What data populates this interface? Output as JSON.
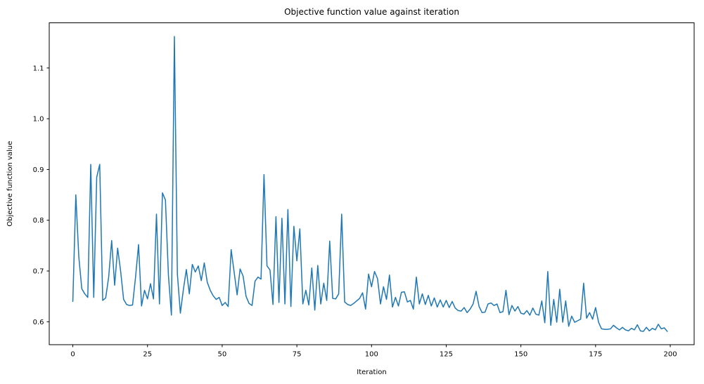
{
  "chart_data": {
    "type": "line",
    "title": "Objective function value against iteration",
    "xlabel": "Iteration",
    "ylabel": "Objective function value",
    "x_start": 0,
    "x_step": 1,
    "values": [
      0.64,
      0.85,
      0.728,
      0.665,
      0.655,
      0.648,
      0.91,
      0.648,
      0.885,
      0.91,
      0.642,
      0.647,
      0.688,
      0.76,
      0.672,
      0.745,
      0.7,
      0.644,
      0.634,
      0.632,
      0.633,
      0.688,
      0.752,
      0.631,
      0.662,
      0.645,
      0.675,
      0.645,
      0.812,
      0.635,
      0.854,
      0.84,
      0.692,
      0.613,
      1.162,
      0.694,
      0.617,
      0.663,
      0.703,
      0.655,
      0.713,
      0.698,
      0.71,
      0.681,
      0.716,
      0.678,
      0.662,
      0.651,
      0.644,
      0.648,
      0.632,
      0.638,
      0.63,
      0.742,
      0.698,
      0.653,
      0.704,
      0.69,
      0.65,
      0.636,
      0.632,
      0.68,
      0.688,
      0.684,
      0.89,
      0.71,
      0.702,
      0.634,
      0.807,
      0.638,
      0.804,
      0.635,
      0.821,
      0.63,
      0.788,
      0.72,
      0.783,
      0.635,
      0.662,
      0.633,
      0.706,
      0.623,
      0.711,
      0.635,
      0.676,
      0.642,
      0.759,
      0.646,
      0.645,
      0.655,
      0.812,
      0.639,
      0.634,
      0.632,
      0.636,
      0.641,
      0.646,
      0.657,
      0.625,
      0.694,
      0.669,
      0.699,
      0.685,
      0.635,
      0.669,
      0.644,
      0.692,
      0.629,
      0.648,
      0.631,
      0.658,
      0.659,
      0.639,
      0.642,
      0.625,
      0.688,
      0.635,
      0.655,
      0.634,
      0.652,
      0.631,
      0.647,
      0.629,
      0.643,
      0.629,
      0.642,
      0.628,
      0.64,
      0.627,
      0.622,
      0.621,
      0.628,
      0.618,
      0.625,
      0.635,
      0.66,
      0.63,
      0.618,
      0.619,
      0.635,
      0.637,
      0.632,
      0.635,
      0.618,
      0.62,
      0.662,
      0.614,
      0.632,
      0.621,
      0.63,
      0.617,
      0.615,
      0.622,
      0.613,
      0.627,
      0.615,
      0.613,
      0.641,
      0.598,
      0.699,
      0.593,
      0.644,
      0.599,
      0.664,
      0.599,
      0.641,
      0.591,
      0.611,
      0.599,
      0.602,
      0.605,
      0.676,
      0.607,
      0.618,
      0.605,
      0.628,
      0.599,
      0.586,
      0.585,
      0.585,
      0.586,
      0.593,
      0.588,
      0.584,
      0.589,
      0.584,
      0.582,
      0.587,
      0.584,
      0.594,
      0.582,
      0.581,
      0.589,
      0.582,
      0.587,
      0.584,
      0.595,
      0.586,
      0.588,
      0.581
    ],
    "xlim": [
      -7.9,
      208.0
    ],
    "ylim": [
      0.5548,
      1.189
    ],
    "xticks": [
      0,
      25,
      50,
      75,
      100,
      125,
      150,
      175,
      200
    ],
    "yticks": [
      0.6,
      0.7,
      0.8,
      0.9,
      1.0,
      1.1
    ],
    "line_color": "#1f77b4",
    "line_width": 1.5,
    "spine_color": "#000000",
    "grid": false,
    "legend": null
  }
}
